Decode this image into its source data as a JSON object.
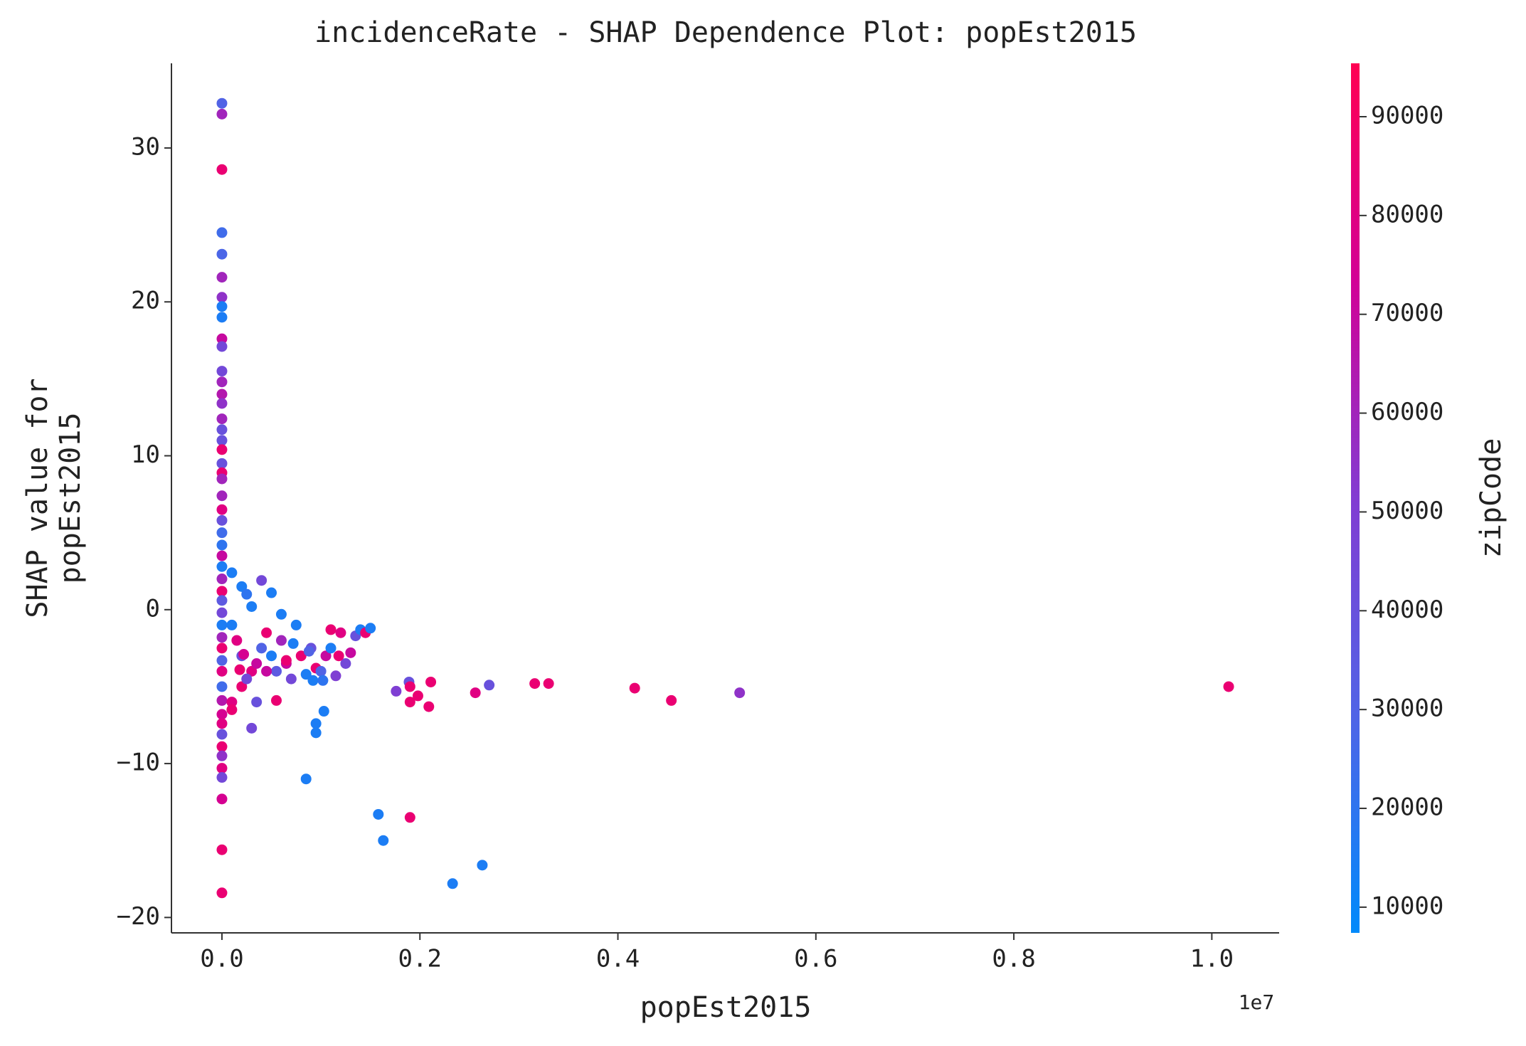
{
  "chart_data": {
    "type": "scatter",
    "title": "incidenceRate - SHAP Dependence Plot: popEst2015",
    "xlabel": "popEst2015",
    "ylabel": [
      "SHAP value for",
      "popEst2015"
    ],
    "x_offset_label": "1e7",
    "colorbar_label": "zipCode",
    "colormap": [
      "#008afb",
      "#5064e6",
      "#823cd2",
      "#d20096",
      "#ff0052"
    ],
    "xlim": [
      -0.051,
      1.068
    ],
    "ylim": [
      -21.0,
      35.5
    ],
    "clim": [
      7400,
      95400
    ],
    "xticks": [
      {
        "value": 0,
        "label": "0.0"
      },
      0.2,
      0.4,
      0.6,
      0.8,
      {
        "value": 1,
        "label": "1.0"
      }
    ],
    "yticks": [
      {
        "value": -20,
        "label": "−20"
      },
      {
        "value": -10,
        "label": "−10"
      },
      0,
      10,
      20,
      30
    ],
    "cticks": [
      10000,
      20000,
      30000,
      40000,
      50000,
      60000,
      70000,
      80000,
      90000
    ],
    "x": [
      0,
      0,
      0,
      0,
      0,
      0,
      0,
      0,
      0,
      0,
      0,
      0,
      0,
      0,
      0,
      0,
      0,
      0,
      0,
      0,
      0,
      0,
      0,
      0,
      0,
      0,
      0,
      0,
      0,
      0,
      0,
      0,
      0,
      0,
      0,
      0,
      0,
      0,
      0,
      0,
      0,
      0,
      0,
      0,
      0,
      0,
      0,
      0,
      0,
      0,
      0.01,
      0.02,
      0.025,
      0.03,
      0.01,
      0.015,
      0.02,
      0.03,
      0.02,
      0.01,
      0.01,
      0.025,
      0.035,
      0.04,
      0.045,
      0.05,
      0.055,
      0.06,
      0.065,
      0.07,
      0.075,
      0.08,
      0.085,
      0.09,
      0.095,
      0.1,
      0.105,
      0.11,
      0.115,
      0.12,
      0.125,
      0.13,
      0.135,
      0.14,
      0.145,
      0.15,
      0.04,
      0.05,
      0.06,
      0.03,
      0.035,
      0.055,
      0.085,
      0.095,
      0.095,
      0.103,
      0.11,
      0.118,
      0.018,
      0.022,
      0.045,
      0.065,
      0.072,
      0.088,
      0.092,
      0.102,
      0.158,
      0.163,
      0.176,
      0.189,
      0.19,
      0.19,
      0.198,
      0.209,
      0.211,
      0.19,
      0.233,
      0.256,
      0.263,
      0.27,
      0.316,
      0.33,
      0.417,
      0.454,
      0.523,
      1.017
    ],
    "values": [
      32.9,
      32.2,
      28.6,
      24.5,
      23.1,
      21.6,
      20.3,
      19.7,
      19.0,
      17.6,
      17.1,
      15.5,
      14.8,
      14.0,
      13.4,
      12.4,
      11.7,
      11.0,
      10.4,
      9.5,
      8.9,
      8.5,
      7.4,
      6.5,
      5.8,
      5.0,
      4.2,
      3.5,
      2.8,
      2.0,
      1.2,
      0.6,
      -0.2,
      -1,
      -1.8,
      -2.5,
      -3.3,
      -4,
      -5,
      -5.9,
      -6.8,
      -7.4,
      -8.1,
      -8.9,
      -9.5,
      -10.3,
      -10.9,
      -12.3,
      -15.6,
      -18.4,
      2.4,
      1.5,
      1,
      0.2,
      -1,
      -2,
      -3,
      -4,
      -5,
      -6,
      -6.5,
      -4.5,
      -3.5,
      -2.5,
      -1.5,
      -3,
      -4,
      -2,
      -3.5,
      -4.5,
      -1,
      -3,
      -4.2,
      -2.5,
      -3.8,
      -4,
      -3,
      -2.5,
      -4.3,
      -1.5,
      -3.5,
      -2.8,
      -1.7,
      -1.3,
      -1.5,
      -1.2,
      1.9,
      1.1,
      -0.3,
      -7.7,
      -6,
      -5.9,
      -11,
      -7.4,
      -8,
      -6.6,
      -1.3,
      -3,
      -3.9,
      -2.9,
      -4,
      -3.3,
      -2.2,
      -2.7,
      -4.6,
      -4.6,
      -13.3,
      -15,
      -5.3,
      -4.7,
      -6,
      -5,
      -5.6,
      -6.3,
      -4.7,
      -13.5,
      -17.8,
      -5.4,
      -16.6,
      -4.9,
      -4.8,
      -4.8,
      -5.1,
      -5.9,
      -5.4,
      -5
    ],
    "c": [
      30000,
      60000,
      85000,
      25000,
      28000,
      60000,
      55000,
      15000,
      15000,
      70000,
      45000,
      45000,
      60000,
      65000,
      55000,
      60000,
      40000,
      40000,
      85000,
      40000,
      85000,
      60000,
      60000,
      80000,
      40000,
      25000,
      20000,
      70000,
      15000,
      60000,
      85000,
      35000,
      45000,
      15000,
      60000,
      85000,
      30000,
      80000,
      25000,
      65000,
      75000,
      80000,
      40000,
      85000,
      55000,
      80000,
      45000,
      75000,
      85000,
      85000,
      15000,
      15000,
      20000,
      15000,
      15000,
      80000,
      40000,
      80000,
      85000,
      80000,
      85000,
      45000,
      70000,
      30000,
      85000,
      15000,
      35000,
      60000,
      70000,
      45000,
      15000,
      85000,
      15000,
      40000,
      85000,
      30000,
      70000,
      15000,
      50000,
      80000,
      45000,
      70000,
      40000,
      15000,
      85000,
      15000,
      45000,
      15000,
      15000,
      45000,
      40000,
      85000,
      15000,
      15000,
      15000,
      15000,
      85000,
      85000,
      85000,
      75000,
      70000,
      85000,
      15000,
      30000,
      15000,
      20000,
      15000,
      15000,
      50000,
      40000,
      85000,
      85000,
      85000,
      85000,
      85000,
      85000,
      15000,
      80000,
      15000,
      40000,
      85000,
      85000,
      85000,
      85000,
      55000,
      85000
    ]
  }
}
